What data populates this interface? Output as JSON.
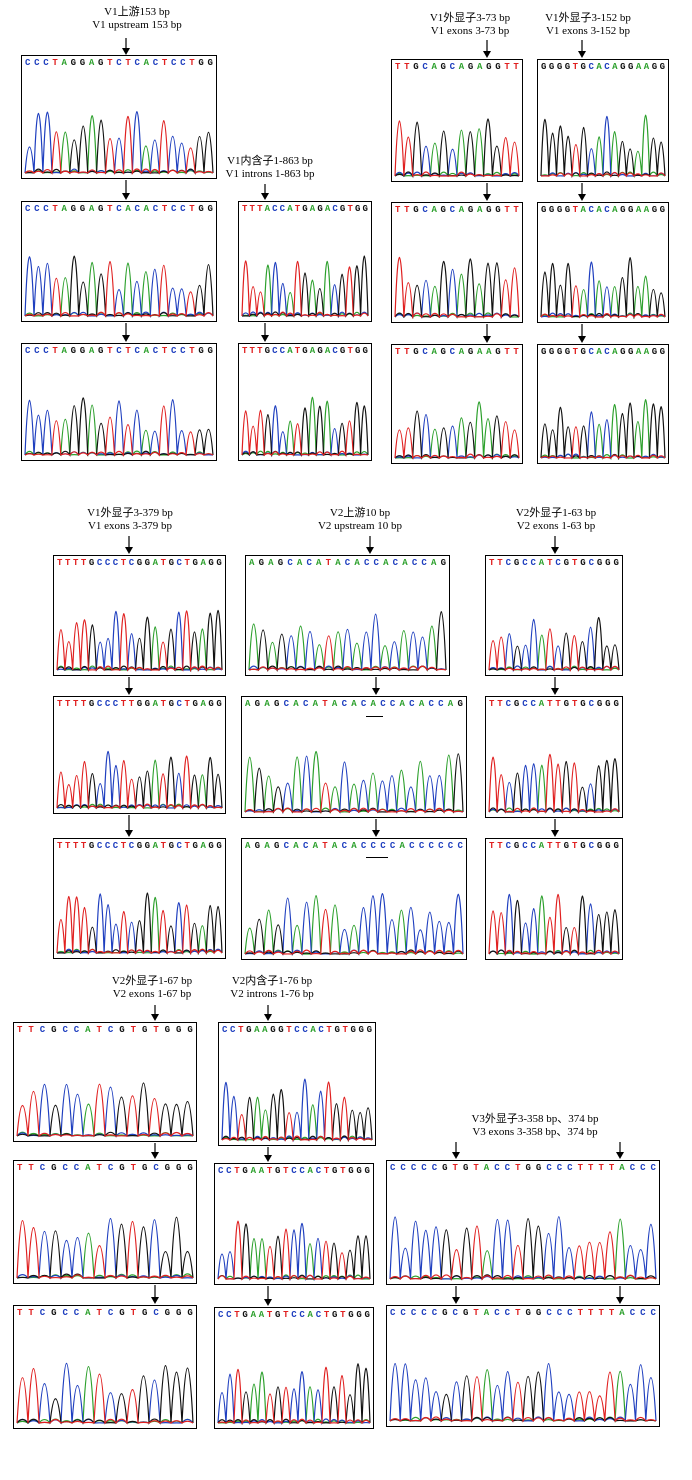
{
  "colors": {
    "A": "#2ca02c",
    "C": "#1f3fbf",
    "G": "#111111",
    "T": "#e02020"
  },
  "labels": [
    {
      "id": "v1up",
      "zh": "V1上游153 bp",
      "en": "V1 upstream 153 bp"
    },
    {
      "id": "v1in",
      "zh": "V1内含子1-863 bp",
      "en": "V1 introns 1-863 bp"
    },
    {
      "id": "v1e73",
      "zh": "V1外显子3-73 bp",
      "en": "V1 exons 3-73 bp"
    },
    {
      "id": "v1e152",
      "zh": "V1外显子3-152 bp",
      "en": "V1 exons 3-152 bp"
    },
    {
      "id": "v1e379",
      "zh": "V1外显子3-379 bp",
      "en": "V1 exons 3-379 bp"
    },
    {
      "id": "v2up",
      "zh": "V2上游10 bp",
      "en": "V2 upstream 10 bp"
    },
    {
      "id": "v2e63",
      "zh": "V2外显子1-63 bp",
      "en": "V2 exons 1-63 bp"
    },
    {
      "id": "v2e67",
      "zh": "V2外显子1-67 bp",
      "en": "V2 exons 1-67 bp"
    },
    {
      "id": "v2in76",
      "zh": "V2内含子1-76 bp",
      "en": "V2 introns 1-76 bp"
    },
    {
      "id": "v3e",
      "zh": "V3外显子3-358 bp、374 bp",
      "en": "V3 exons 3-358 bp、374 bp"
    }
  ],
  "panels": [
    {
      "id": "v1up-1",
      "seq": "CCCTAGGAGTCTCACTCCTGG"
    },
    {
      "id": "v1up-2",
      "seq": "CCCTAGGAGTCACACTCCTGG"
    },
    {
      "id": "v1up-3",
      "seq": "CCCTAGGAGTCTCACTCCTGG"
    },
    {
      "id": "v1in-1",
      "seq": "TTTACCATGAGACGTGG"
    },
    {
      "id": "v1in-2",
      "seq": "TTTGCCATGAGACGTGG"
    },
    {
      "id": "v1e73-1",
      "seq": "TTGCAGCAGAGGTT"
    },
    {
      "id": "v1e73-2",
      "seq": "TTGCAGCAGAGGTT"
    },
    {
      "id": "v1e73-3",
      "seq": "TTGCAGCAGAAGTT"
    },
    {
      "id": "v1e152-1",
      "seq": "GGGGTGCACAGGAAGG"
    },
    {
      "id": "v1e152-2",
      "seq": "GGGGTACACAGGAAGG"
    },
    {
      "id": "v1e152-3",
      "seq": "GGGGTGCACAGGAAGG"
    },
    {
      "id": "v1e379-1",
      "seq": "TTTTGCCCTCGGATGCTGAGG"
    },
    {
      "id": "v1e379-2",
      "seq": "TTTTGCCCTTGGATGCTGAGG"
    },
    {
      "id": "v1e379-3",
      "seq": "TTTTGCCCTCGGATGCTGAGG"
    },
    {
      "id": "v2up-1",
      "seq": "AGAGCACATACACCACACCAG"
    },
    {
      "id": "v2up-2",
      "seq": "AGAGCACATACACACCACACCAG"
    },
    {
      "id": "v2up-3",
      "seq": "AGAGCACATACACCCCACCCCCC"
    },
    {
      "id": "v2e63-1",
      "seq": "TTCGCCATCGTGCGGG"
    },
    {
      "id": "v2e63-2",
      "seq": "TTCGCCATTGTGCGGG"
    },
    {
      "id": "v2e63-3",
      "seq": "TTCGCCATTGTGCGGG"
    },
    {
      "id": "v2e67-1",
      "seq": "TTCGCCATCGTGTGGG"
    },
    {
      "id": "v2e67-2",
      "seq": "TTCGCCATCGTGCGGG"
    },
    {
      "id": "v2e67-3",
      "seq": "TTCGCCATCGTGCGGG"
    },
    {
      "id": "v2in76-1",
      "seq": "CCTGAAGGTCCACTGTGGG"
    },
    {
      "id": "v2in76-2",
      "seq": "CCTGAATGTCCACTGTGGG"
    },
    {
      "id": "v2in76-3",
      "seq": "CCTGAATGTCCACTGTGGG"
    },
    {
      "id": "v3e-1",
      "seq": "CCCCCGTGTACCTGGCCCTTTTACCC"
    },
    {
      "id": "v3e-2",
      "seq": "CCCCCGCGTACCTGGCCCTTTTACCC"
    }
  ]
}
